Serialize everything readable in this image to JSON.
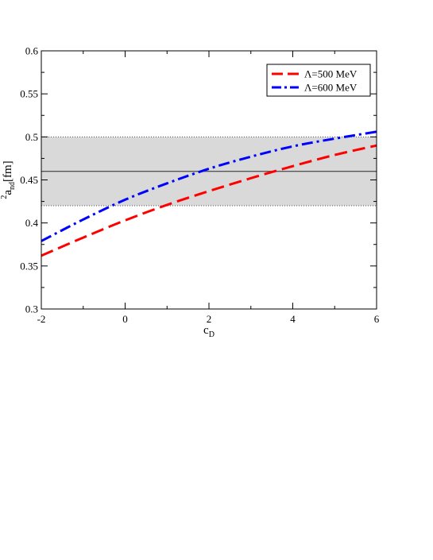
{
  "chart_data": {
    "type": "line",
    "xlabel": "c",
    "xlabel_sub": "D",
    "ylabel_sup": "2",
    "ylabel_a": "a",
    "ylabel_sub": "nd",
    "ylabel_unit": "[fm]",
    "xlim": [
      -2,
      6
    ],
    "ylim": [
      0.3,
      0.6
    ],
    "x_ticks": [
      -2,
      0,
      2,
      4,
      6
    ],
    "x_tick_labels": [
      "-2",
      "0",
      "2",
      "4",
      "6"
    ],
    "y_ticks": [
      0.3,
      0.35,
      0.4,
      0.45,
      0.5,
      0.55,
      0.6
    ],
    "y_tick_labels": [
      "0.3",
      "0.35",
      "0.4",
      "0.45",
      "0.5",
      "0.55",
      "0.6"
    ],
    "grid": false,
    "legend_position": "top-right",
    "band": {
      "lower": 0.42,
      "upper": 0.5,
      "center": 0.46,
      "color": "#d9d9d9"
    },
    "series": [
      {
        "name": "Λ=500 MeV",
        "color": "#ff0000",
        "style": "dashed",
        "x": [
          -2,
          -1,
          0,
          1,
          2,
          3,
          4,
          5,
          6
        ],
        "y": [
          0.362,
          0.383,
          0.403,
          0.421,
          0.437,
          0.452,
          0.466,
          0.479,
          0.49
        ]
      },
      {
        "name": "Λ=600 MeV",
        "color": "#0000ff",
        "style": "dashdot",
        "x": [
          -2,
          -1,
          0,
          1,
          2,
          3,
          4,
          5,
          6
        ],
        "y": [
          0.379,
          0.404,
          0.427,
          0.446,
          0.463,
          0.477,
          0.489,
          0.498,
          0.506
        ]
      }
    ]
  }
}
